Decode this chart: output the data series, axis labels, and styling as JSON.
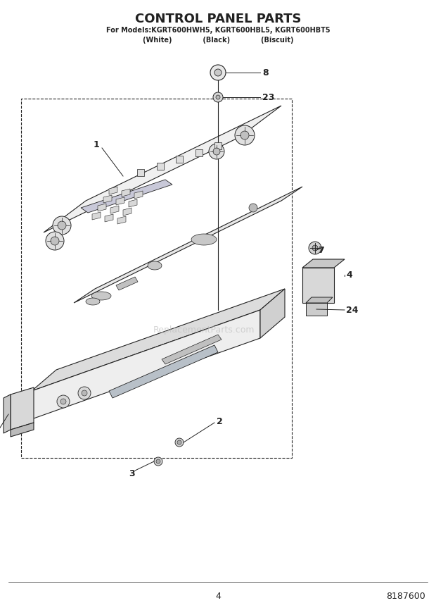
{
  "title": "CONTROL PANEL PARTS",
  "subtitle_line1": "For Models:KGRT600HWH5, KGRT600HBL5, KGRT600HBT5",
  "subtitle_line2": "(White)             (Black)             (Biscuit)",
  "page_number": "4",
  "part_number": "8187600",
  "bg_color": "#ffffff",
  "line_color": "#222222",
  "watermark_text": "ReplacementParts.com",
  "figsize": [
    6.2,
    8.56
  ],
  "dpi": 100
}
